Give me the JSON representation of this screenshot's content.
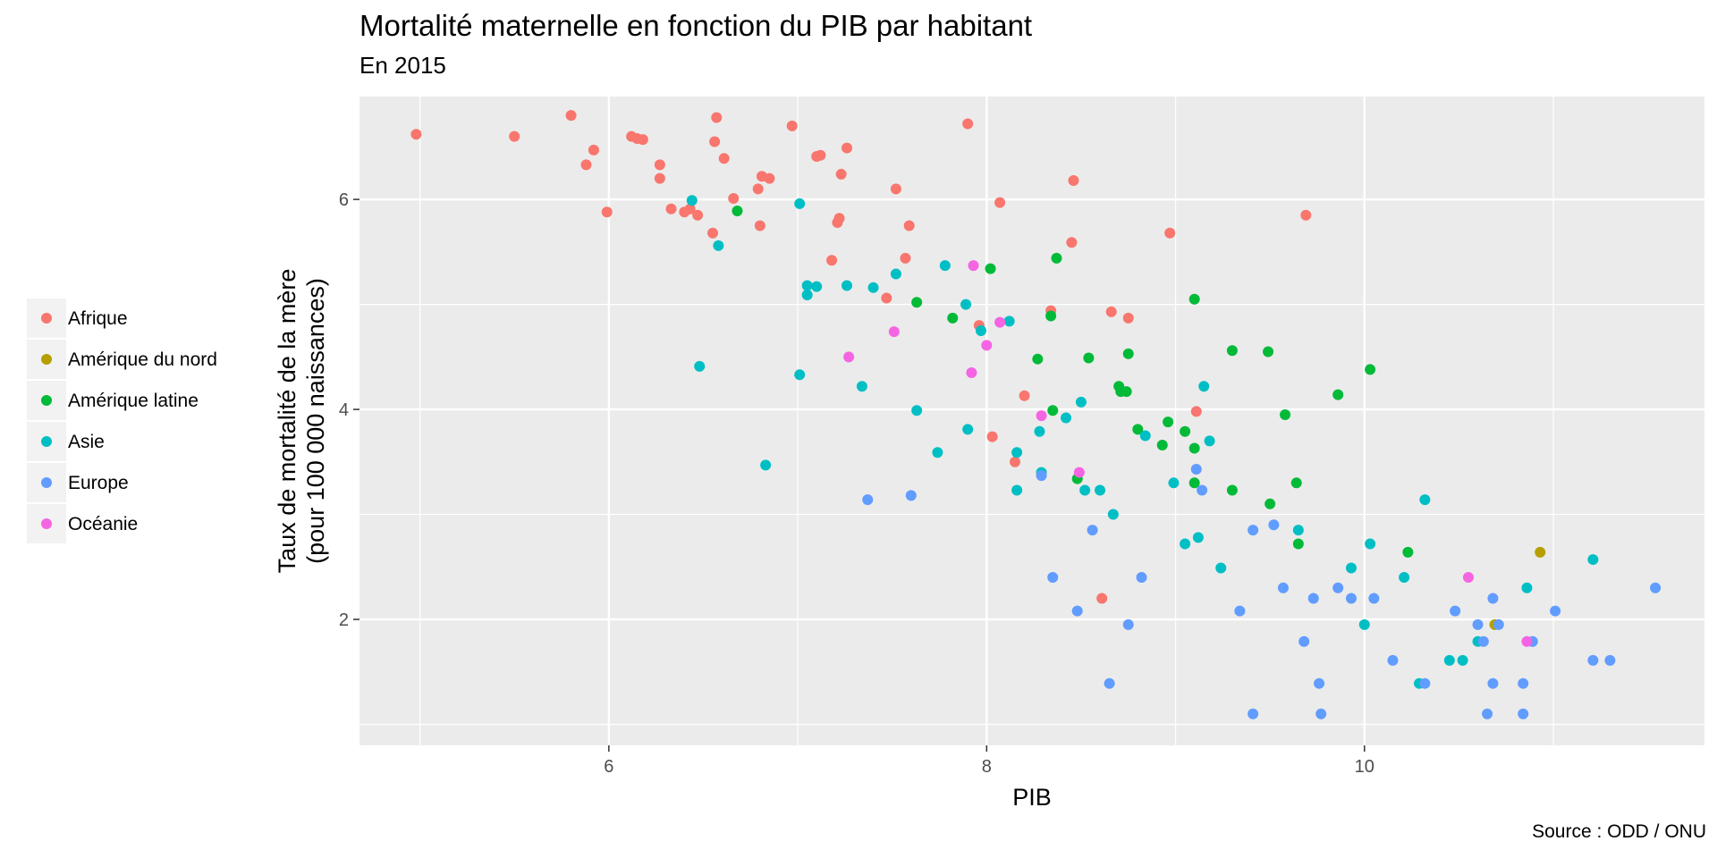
{
  "title": "Mortalité maternelle en fonction du PIB par habitant",
  "subtitle": "En 2015",
  "caption": "Source : ODD / ONU",
  "chart_data": {
    "type": "scatter",
    "xlabel": "PIB",
    "ylabel_lines": [
      "Taux de mortalité de la mère",
      "(pour 100 000 naissances)"
    ],
    "xlim": [
      4.68,
      11.8
    ],
    "ylim": [
      0.8,
      6.98
    ],
    "x_ticks": [
      6,
      8,
      10
    ],
    "y_ticks": [
      2,
      4,
      6
    ],
    "x_tick_labels": [
      "6",
      "8",
      "10"
    ],
    "y_tick_labels": [
      "2",
      "4",
      "6"
    ],
    "grid": true,
    "legend_position": "left",
    "series": [
      {
        "name": "Afrique",
        "color": "#F8766D",
        "points": [
          [
            4.98,
            6.62
          ],
          [
            5.5,
            6.6
          ],
          [
            5.8,
            6.8
          ],
          [
            5.88,
            6.33
          ],
          [
            5.92,
            6.47
          ],
          [
            5.99,
            5.88
          ],
          [
            6.12,
            6.6
          ],
          [
            6.15,
            6.58
          ],
          [
            6.18,
            6.57
          ],
          [
            6.27,
            6.33
          ],
          [
            6.27,
            6.2
          ],
          [
            6.33,
            5.91
          ],
          [
            6.4,
            5.88
          ],
          [
            6.43,
            5.91
          ],
          [
            6.47,
            5.85
          ],
          [
            6.55,
            5.68
          ],
          [
            6.56,
            6.55
          ],
          [
            6.57,
            6.78
          ],
          [
            6.61,
            6.39
          ],
          [
            6.66,
            6.01
          ],
          [
            6.79,
            6.1
          ],
          [
            6.8,
            5.75
          ],
          [
            6.81,
            6.22
          ],
          [
            6.85,
            6.2
          ],
          [
            6.97,
            6.7
          ],
          [
            7.1,
            6.41
          ],
          [
            7.12,
            6.42
          ],
          [
            7.18,
            5.42
          ],
          [
            7.21,
            5.78
          ],
          [
            7.22,
            5.82
          ],
          [
            7.23,
            6.24
          ],
          [
            7.26,
            6.49
          ],
          [
            7.47,
            5.06
          ],
          [
            7.52,
            6.1
          ],
          [
            7.57,
            5.44
          ],
          [
            7.59,
            5.75
          ],
          [
            7.9,
            6.72
          ],
          [
            7.96,
            4.8
          ],
          [
            8.03,
            3.74
          ],
          [
            8.07,
            5.97
          ],
          [
            8.15,
            3.5
          ],
          [
            8.2,
            4.13
          ],
          [
            8.34,
            4.94
          ],
          [
            8.45,
            5.59
          ],
          [
            8.46,
            6.18
          ],
          [
            8.61,
            2.2
          ],
          [
            8.66,
            4.93
          ],
          [
            8.75,
            4.87
          ],
          [
            8.97,
            5.68
          ],
          [
            9.11,
            3.98
          ],
          [
            9.69,
            5.85
          ]
        ]
      },
      {
        "name": "Amérique du nord",
        "color": "#B79F00",
        "points": [
          [
            10.69,
            1.95
          ],
          [
            10.93,
            2.64
          ]
        ]
      },
      {
        "name": "Amérique latine",
        "color": "#00BA38",
        "points": [
          [
            6.68,
            5.89
          ],
          [
            7.63,
            5.02
          ],
          [
            7.82,
            4.87
          ],
          [
            8.02,
            5.34
          ],
          [
            8.27,
            4.48
          ],
          [
            8.34,
            4.89
          ],
          [
            8.35,
            3.99
          ],
          [
            8.37,
            5.44
          ],
          [
            8.48,
            3.34
          ],
          [
            8.54,
            4.49
          ],
          [
            8.7,
            4.22
          ],
          [
            8.71,
            4.17
          ],
          [
            8.74,
            4.17
          ],
          [
            8.75,
            4.53
          ],
          [
            8.8,
            3.81
          ],
          [
            8.93,
            3.66
          ],
          [
            8.96,
            3.88
          ],
          [
            9.05,
            3.79
          ],
          [
            9.1,
            3.3
          ],
          [
            9.1,
            3.63
          ],
          [
            9.1,
            5.05
          ],
          [
            9.3,
            3.23
          ],
          [
            9.3,
            4.56
          ],
          [
            9.49,
            4.55
          ],
          [
            9.5,
            3.1
          ],
          [
            9.58,
            3.95
          ],
          [
            9.64,
            3.3
          ],
          [
            9.65,
            2.72
          ],
          [
            9.86,
            4.14
          ],
          [
            10.03,
            4.38
          ],
          [
            10.23,
            2.64
          ]
        ]
      },
      {
        "name": "Asie",
        "color": "#00BFC4",
        "points": [
          [
            6.44,
            5.99
          ],
          [
            6.48,
            4.41
          ],
          [
            6.58,
            5.56
          ],
          [
            6.83,
            3.47
          ],
          [
            7.01,
            5.96
          ],
          [
            7.01,
            4.33
          ],
          [
            7.05,
            5.09
          ],
          [
            7.05,
            5.18
          ],
          [
            7.1,
            5.17
          ],
          [
            7.26,
            5.18
          ],
          [
            7.34,
            4.22
          ],
          [
            7.4,
            5.16
          ],
          [
            7.52,
            5.29
          ],
          [
            7.63,
            3.99
          ],
          [
            7.74,
            3.59
          ],
          [
            7.78,
            5.37
          ],
          [
            7.89,
            5.0
          ],
          [
            7.9,
            3.81
          ],
          [
            7.97,
            4.75
          ],
          [
            8.12,
            4.84
          ],
          [
            8.16,
            3.59
          ],
          [
            8.16,
            3.23
          ],
          [
            8.28,
            3.79
          ],
          [
            8.29,
            3.4
          ],
          [
            8.42,
            3.92
          ],
          [
            8.5,
            4.07
          ],
          [
            8.52,
            3.23
          ],
          [
            8.6,
            3.23
          ],
          [
            8.67,
            3.0
          ],
          [
            8.84,
            3.75
          ],
          [
            8.99,
            3.3
          ],
          [
            9.05,
            2.72
          ],
          [
            9.12,
            2.78
          ],
          [
            9.15,
            4.22
          ],
          [
            9.18,
            3.7
          ],
          [
            9.24,
            2.49
          ],
          [
            9.65,
            2.85
          ],
          [
            9.93,
            2.49
          ],
          [
            10.0,
            1.95
          ],
          [
            10.03,
            2.72
          ],
          [
            10.21,
            2.4
          ],
          [
            10.29,
            1.39
          ],
          [
            10.32,
            3.14
          ],
          [
            10.45,
            1.61
          ],
          [
            10.52,
            1.61
          ],
          [
            10.6,
            1.79
          ],
          [
            10.86,
            2.3
          ],
          [
            11.21,
            2.57
          ]
        ]
      },
      {
        "name": "Europe",
        "color": "#619CFF",
        "points": [
          [
            7.37,
            3.14
          ],
          [
            7.6,
            3.18
          ],
          [
            8.29,
            3.37
          ],
          [
            8.35,
            2.4
          ],
          [
            8.48,
            2.08
          ],
          [
            8.56,
            2.85
          ],
          [
            8.65,
            1.39
          ],
          [
            8.75,
            1.95
          ],
          [
            8.82,
            2.4
          ],
          [
            9.11,
            3.43
          ],
          [
            9.14,
            3.23
          ],
          [
            9.34,
            2.08
          ],
          [
            9.41,
            1.1
          ],
          [
            9.41,
            2.85
          ],
          [
            9.52,
            2.9
          ],
          [
            9.57,
            2.3
          ],
          [
            9.68,
            1.79
          ],
          [
            9.73,
            2.2
          ],
          [
            9.76,
            1.39
          ],
          [
            9.77,
            1.1
          ],
          [
            9.86,
            2.3
          ],
          [
            9.93,
            2.2
          ],
          [
            10.05,
            2.2
          ],
          [
            10.15,
            1.61
          ],
          [
            10.32,
            1.39
          ],
          [
            10.48,
            2.08
          ],
          [
            10.6,
            1.95
          ],
          [
            10.63,
            1.79
          ],
          [
            10.65,
            1.1
          ],
          [
            10.68,
            1.39
          ],
          [
            10.68,
            2.2
          ],
          [
            10.71,
            1.95
          ],
          [
            10.84,
            1.1
          ],
          [
            10.84,
            1.39
          ],
          [
            10.89,
            1.79
          ],
          [
            11.01,
            2.08
          ],
          [
            11.21,
            1.61
          ],
          [
            11.3,
            1.61
          ],
          [
            11.54,
            2.3
          ]
        ]
      },
      {
        "name": "Océanie",
        "color": "#F564E3",
        "points": [
          [
            7.27,
            4.5
          ],
          [
            7.51,
            4.74
          ],
          [
            7.92,
            4.35
          ],
          [
            7.93,
            5.37
          ],
          [
            8.0,
            4.61
          ],
          [
            8.07,
            4.83
          ],
          [
            8.29,
            3.94
          ],
          [
            8.49,
            3.4
          ],
          [
            10.55,
            2.4
          ],
          [
            10.86,
            1.79
          ]
        ]
      }
    ]
  }
}
